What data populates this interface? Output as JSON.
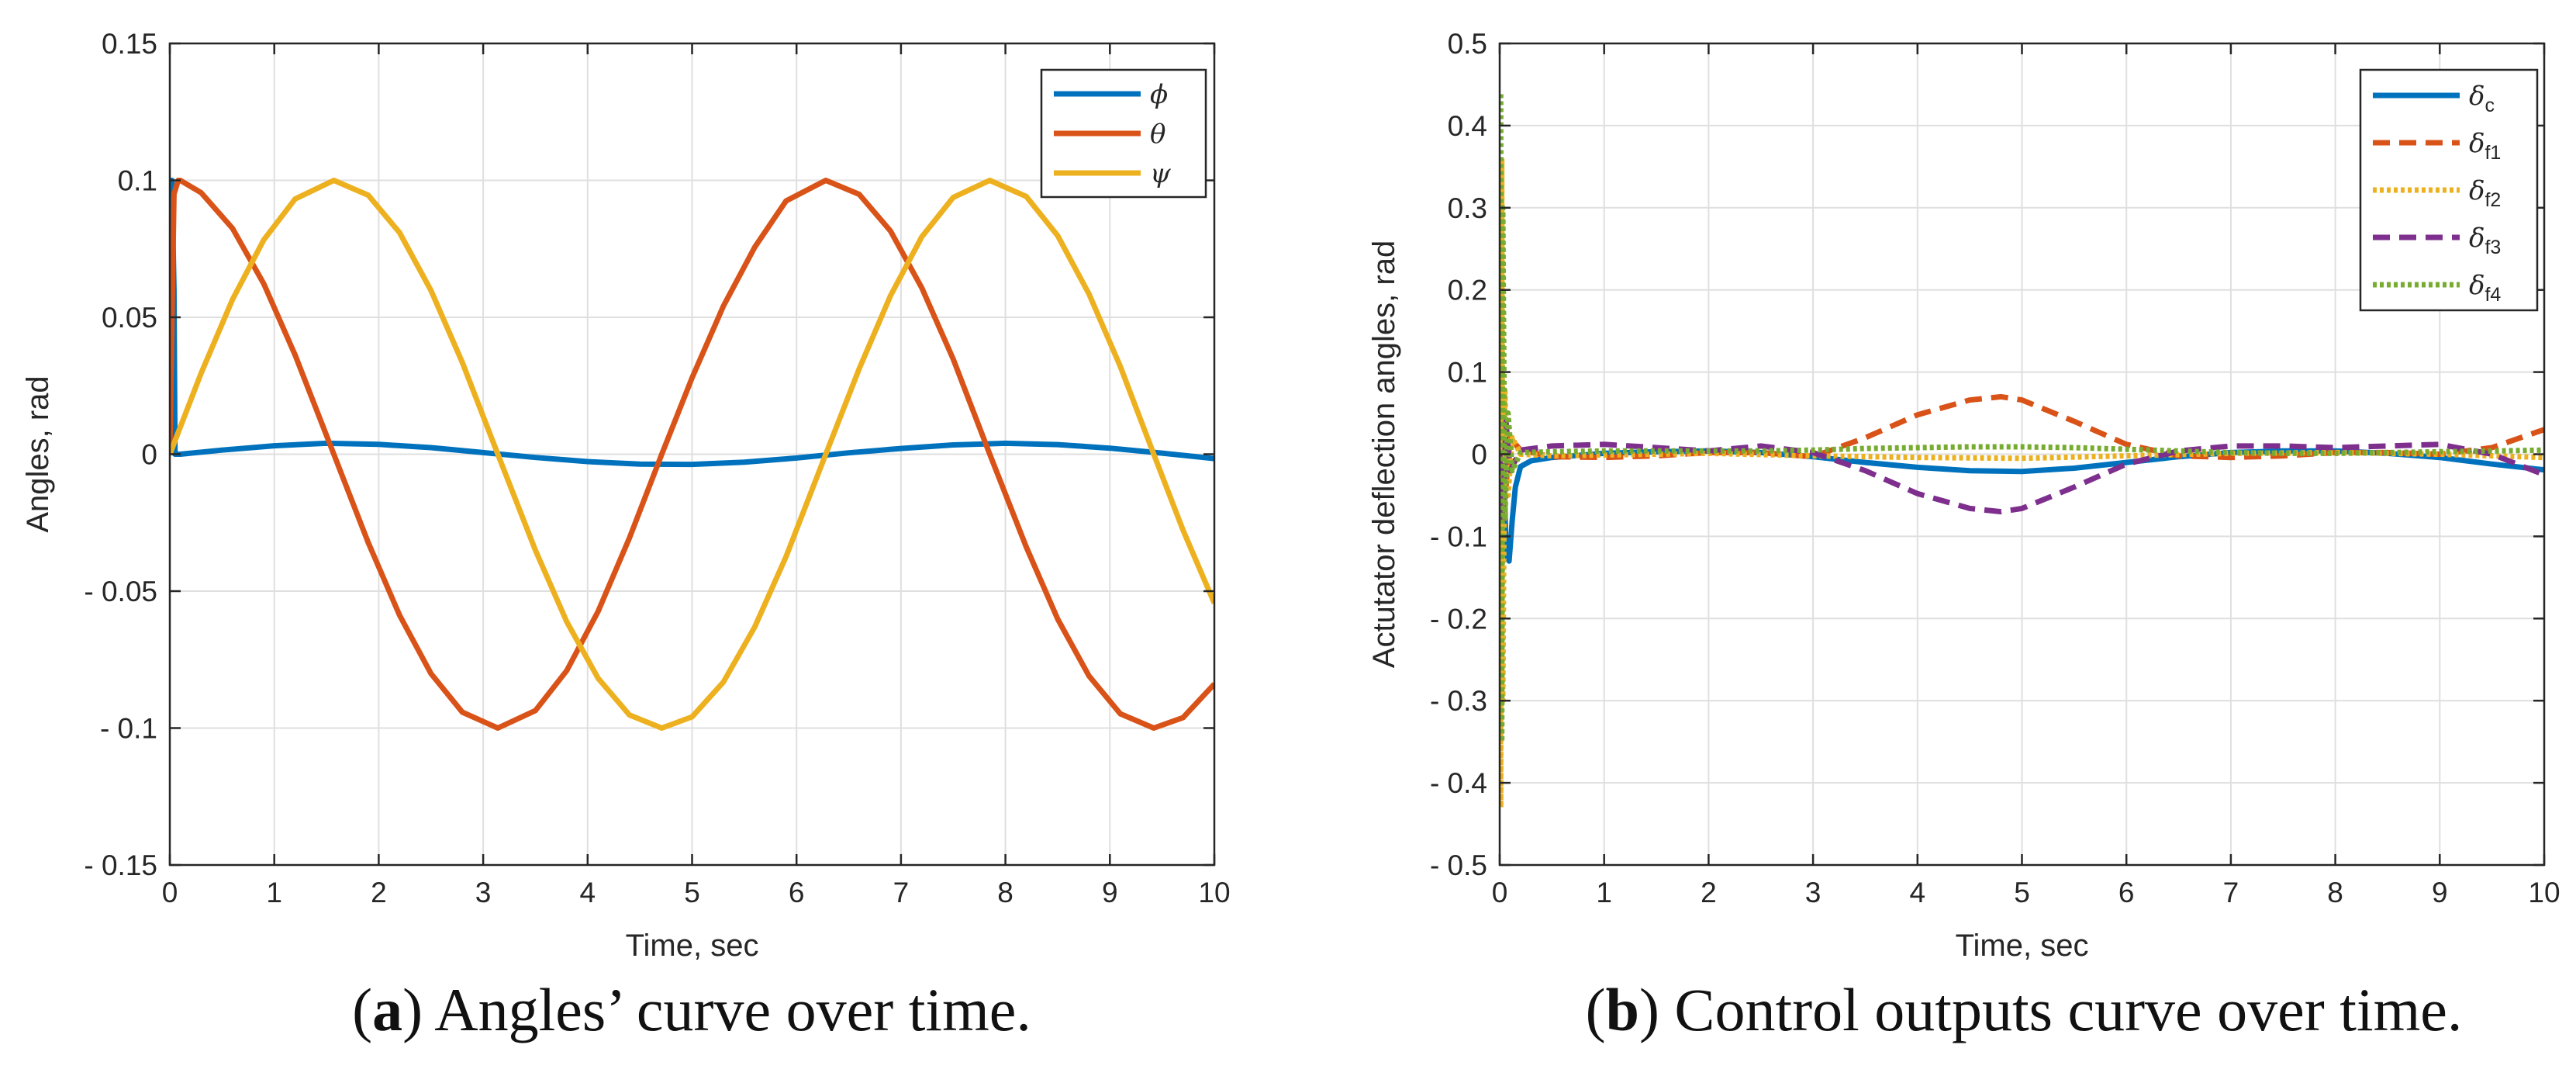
{
  "chart_data": [
    {
      "type": "line",
      "caption": {
        "letter": "a",
        "text": "Angles’ curve over time."
      },
      "xlabel": "Time, sec",
      "ylabel": "Angles, rad",
      "xlim": [
        0,
        10
      ],
      "ylim": [
        -0.15,
        0.15
      ],
      "grid": true,
      "legend_position": "top-right",
      "xticks": [
        0,
        1,
        2,
        3,
        4,
        5,
        6,
        7,
        8,
        9,
        10
      ],
      "yticks": [
        0.15,
        0.1,
        0.05,
        0,
        -0.05,
        -0.1,
        -0.15
      ],
      "xtick_labels": [
        "0",
        "1",
        "2",
        "3",
        "4",
        "5",
        "6",
        "7",
        "8",
        "9",
        "10"
      ],
      "ytick_labels": [
        "0.15",
        "0.1",
        "0.05",
        "0",
        "- 0.05",
        "- 0.1",
        "- 0.15"
      ],
      "series": [
        {
          "name": "ϕ",
          "color": "#0072BD",
          "style": "solid",
          "x": [
            0,
            0.02,
            0.04,
            0.05,
            0.1,
            0.5,
            1,
            1.5,
            2,
            2.5,
            3,
            3.5,
            4,
            4.5,
            5,
            5.5,
            6,
            6.5,
            7,
            7.5,
            8,
            8.5,
            9,
            9.5,
            10
          ],
          "y": [
            0,
            0.1,
            0.06,
            0,
            0,
            0.0015,
            0.0031,
            0.004,
            0.0036,
            0.0024,
            0.0006,
            -0.0012,
            -0.0027,
            -0.0036,
            -0.0037,
            -0.0029,
            -0.0014,
            0.0005,
            0.0021,
            0.0034,
            0.004,
            0.0035,
            0.0022,
            0.0004,
            -0.0016
          ]
        },
        {
          "name": "θ",
          "color": "#D95319",
          "style": "solid",
          "x": [
            0,
            0.04,
            0.08,
            0.1,
            0.3,
            0.6,
            0.9,
            1.2,
            1.57,
            1.9,
            2.2,
            2.5,
            2.8,
            3.14,
            3.5,
            3.8,
            4.1,
            4.4,
            4.71,
            5,
            5.3,
            5.6,
            5.9,
            6.28,
            6.6,
            6.9,
            7.2,
            7.5,
            7.85,
            8.2,
            8.5,
            8.8,
            9.1,
            9.42,
            9.7,
            10
          ],
          "y": [
            0,
            0.095,
            0.1,
            0.1,
            0.0955,
            0.0825,
            0.0622,
            0.0362,
            0,
            -0.0323,
            -0.0588,
            -0.0801,
            -0.0942,
            -0.1,
            -0.0936,
            -0.079,
            -0.0574,
            -0.0306,
            0,
            0.0279,
            0.0541,
            0.0756,
            0.0925,
            0.1,
            0.0949,
            0.0815,
            0.0607,
            0.0347,
            0,
            -0.0339,
            -0.0602,
            -0.081,
            -0.0948,
            -0.1,
            -0.0962,
            -0.0839
          ]
        },
        {
          "name": "ψ",
          "color": "#EDB120",
          "style": "solid",
          "x": [
            0,
            0.3,
            0.6,
            0.9,
            1.2,
            1.57,
            1.9,
            2.2,
            2.5,
            2.8,
            3.14,
            3.5,
            3.8,
            4.1,
            4.4,
            4.71,
            5,
            5.3,
            5.6,
            5.9,
            6.28,
            6.6,
            6.9,
            7.2,
            7.5,
            7.85,
            8.2,
            8.5,
            8.8,
            9.1,
            9.42,
            9.7,
            10
          ],
          "y": [
            0,
            0.0296,
            0.0565,
            0.0783,
            0.0932,
            0.1,
            0.0946,
            0.0809,
            0.0598,
            0.0335,
            0,
            -0.0351,
            -0.0612,
            -0.0818,
            -0.0952,
            -0.1,
            -0.0959,
            -0.0832,
            -0.0631,
            -0.0374,
            0,
            0.0312,
            0.0579,
            0.0794,
            0.0938,
            0.1,
            0.0941,
            0.0798,
            0.0585,
            0.032,
            0,
            -0.0277,
            -0.0544
          ]
        }
      ]
    },
    {
      "type": "line",
      "caption": {
        "letter": "b",
        "text": "Control outputs curve over time."
      },
      "xlabel": "Time, sec",
      "ylabel": "Actutator deflection angles, rad",
      "xlim": [
        0,
        10
      ],
      "ylim": [
        -0.5,
        0.5
      ],
      "grid": true,
      "legend_position": "top-right",
      "xticks": [
        0,
        1,
        2,
        3,
        4,
        5,
        6,
        7,
        8,
        9,
        10
      ],
      "yticks": [
        0.5,
        0.4,
        0.3,
        0.2,
        0.1,
        0,
        -0.1,
        -0.2,
        -0.3,
        -0.4,
        -0.5
      ],
      "xtick_labels": [
        "0",
        "1",
        "2",
        "3",
        "4",
        "5",
        "6",
        "7",
        "8",
        "9",
        "10"
      ],
      "ytick_labels": [
        "0.5",
        "0.4",
        "0.3",
        "0.2",
        "0.1",
        "0",
        "- 0.1",
        "- 0.2",
        "- 0.3",
        "- 0.4",
        "- 0.5"
      ],
      "series": [
        {
          "name": "δc",
          "symbol": "δ",
          "subscript": "c",
          "color": "#0072BD",
          "style": "solid",
          "x": [
            0,
            0.03,
            0.06,
            0.09,
            0.12,
            0.15,
            0.2,
            0.3,
            0.5,
            1,
            1.5,
            2,
            2.5,
            3,
            3.5,
            4,
            4.5,
            5,
            5.5,
            6,
            6.5,
            7,
            7.5,
            8,
            8.5,
            9,
            9.5,
            10
          ],
          "y": [
            0,
            0.05,
            -0.12,
            -0.13,
            -0.08,
            -0.04,
            -0.015,
            -0.008,
            -0.004,
            0.001,
            0.003,
            0.004,
            0.002,
            -0.003,
            -0.01,
            -0.016,
            -0.02,
            -0.021,
            -0.017,
            -0.01,
            -0.003,
            0.002,
            0.004,
            0.004,
            0.001,
            -0.004,
            -0.012,
            -0.019
          ]
        },
        {
          "name": "δf1",
          "symbol": "δ",
          "subscript": "f1",
          "color": "#D95319",
          "style": "dashed",
          "x": [
            0,
            0.03,
            0.06,
            0.1,
            0.2,
            0.5,
            1,
            1.5,
            2,
            2.5,
            3,
            3.5,
            4,
            4.5,
            4.8,
            5,
            5.5,
            6,
            6.5,
            7,
            7.5,
            8,
            8.5,
            9,
            9.5,
            10
          ],
          "y": [
            0,
            0.08,
            -0.04,
            0.02,
            0.005,
            -0.003,
            -0.004,
            -0.002,
            0.002,
            0.002,
            -0.003,
            0.02,
            0.048,
            0.066,
            0.07,
            0.066,
            0.04,
            0.012,
            -0.002,
            -0.004,
            -0.002,
            0.002,
            0.002,
            0.0,
            0.008,
            0.03
          ]
        },
        {
          "name": "δf2",
          "symbol": "δ",
          "subscript": "f2",
          "color": "#EDB120",
          "style": "dotted",
          "x": [
            0,
            0.01,
            0.02,
            0.03,
            0.05,
            0.08,
            0.12,
            0.2,
            0.5,
            1,
            2,
            3,
            4,
            5,
            6,
            7,
            8,
            9,
            10
          ],
          "y": [
            0,
            -0.43,
            0.36,
            -0.3,
            0.08,
            -0.05,
            0.02,
            0.0,
            -0.002,
            -0.001,
            0.001,
            -0.002,
            -0.004,
            -0.005,
            -0.002,
            0.001,
            0.002,
            0.0,
            -0.004
          ]
        },
        {
          "name": "δf3",
          "symbol": "δ",
          "subscript": "f3",
          "color": "#7E2F8E",
          "style": "dashed",
          "x": [
            0,
            0.03,
            0.06,
            0.1,
            0.2,
            0.5,
            1,
            1.5,
            2,
            2.5,
            3,
            3.5,
            4,
            4.5,
            4.8,
            5,
            5.5,
            6,
            6.5,
            7,
            7.5,
            8,
            8.5,
            9,
            9.5,
            10
          ],
          "y": [
            0,
            -0.08,
            0.04,
            -0.02,
            0.005,
            0.01,
            0.012,
            0.008,
            0.004,
            0.01,
            0.002,
            -0.02,
            -0.048,
            -0.066,
            -0.07,
            -0.066,
            -0.04,
            -0.012,
            0.004,
            0.01,
            0.01,
            0.008,
            0.01,
            0.012,
            0.0,
            -0.025
          ]
        },
        {
          "name": "δf4",
          "symbol": "δ",
          "subscript": "f4",
          "color": "#77AC30",
          "style": "dotted",
          "x": [
            0,
            0.01,
            0.02,
            0.03,
            0.05,
            0.08,
            0.12,
            0.2,
            0.5,
            1,
            1.5,
            2,
            2.5,
            3,
            3.5,
            4,
            4.5,
            5,
            5.5,
            6,
            6.5,
            7,
            7.5,
            8,
            8.5,
            9,
            9.5,
            10
          ],
          "y": [
            0,
            0.44,
            -0.35,
            0.3,
            -0.08,
            0.05,
            -0.02,
            0.002,
            0.003,
            0.004,
            0.004,
            0.004,
            0.004,
            0.005,
            0.007,
            0.008,
            0.009,
            0.009,
            0.008,
            0.006,
            0.004,
            0.002,
            0.001,
            0.001,
            0.002,
            0.003,
            0.004,
            0.005
          ]
        }
      ]
    }
  ]
}
